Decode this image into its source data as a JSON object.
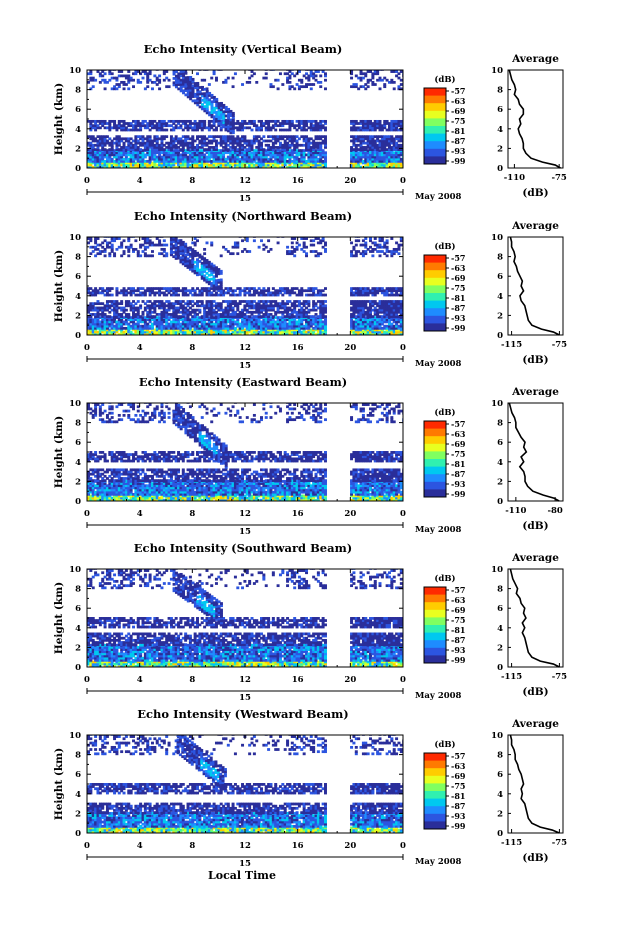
{
  "colorbar": {
    "unit": "(dB)",
    "ticks": [
      "-57",
      "-63",
      "-69",
      "-75",
      "-81",
      "-87",
      "-93",
      "-99"
    ],
    "colors": [
      "#ff2a00",
      "#ff7a00",
      "#ffcc00",
      "#e8ff20",
      "#80ff60",
      "#30f0b0",
      "#00c8f0",
      "#1e8cff",
      "#2c55e0",
      "#2a2e9a"
    ]
  },
  "common": {
    "ylabel": "Height (km)",
    "day_label": "15",
    "date_label": "May 2008",
    "average_title": "Average",
    "average_xlabel": "(dB)",
    "xlabel": "Local Time"
  },
  "chart_data": [
    {
      "type": "heatmap",
      "title": "Echo Intensity (Vertical Beam)",
      "xlabel": "",
      "ylabel": "Height (km)",
      "x_ticks": [
        "0",
        "4",
        "8",
        "12",
        "16",
        "20",
        "0"
      ],
      "y_ticks": [
        "0",
        "2",
        "4",
        "6",
        "8",
        "10"
      ],
      "xlim": [
        0,
        24
      ],
      "ylim": [
        0,
        10
      ],
      "data_gap_hours": [
        18.2,
        19.8
      ],
      "bands": [
        {
          "h0": 0.0,
          "h1": 0.6,
          "level": "strong"
        },
        {
          "h0": 0.6,
          "h1": 1.8,
          "level": "moderate"
        },
        {
          "h0": 1.8,
          "h1": 3.2,
          "level": "weak"
        },
        {
          "h0": 3.8,
          "h1": 4.8,
          "level": "weak"
        },
        {
          "h0": 8.0,
          "h1": 10.0,
          "level": "sparse"
        }
      ],
      "plume": {
        "t0": 6.5,
        "t1": 11.0,
        "h_top": 9.3,
        "h_bottom": 4.2
      },
      "average_profile": {
        "x_ticks": [
          "-110",
          "-75"
        ],
        "xlim": [
          -115,
          -72
        ],
        "height": [
          0,
          0.3,
          0.6,
          1.0,
          1.5,
          2.0,
          2.5,
          3.0,
          3.5,
          4.0,
          4.5,
          5.0,
          5.5,
          6.0,
          6.5,
          7.0,
          7.5,
          8.0,
          8.5,
          9.0,
          9.5,
          10.0
        ],
        "echo_db": [
          -74,
          -78,
          -88,
          -97,
          -101,
          -103,
          -103,
          -104,
          -106,
          -107,
          -105,
          -106,
          -103,
          -103,
          -106,
          -107,
          -110,
          -109,
          -110,
          -112,
          -113,
          -114
        ]
      }
    },
    {
      "type": "heatmap",
      "title": "Echo Intensity (Northward Beam)",
      "xlabel": "",
      "ylabel": "Height (km)",
      "x_ticks": [
        "0",
        "4",
        "8",
        "12",
        "16",
        "20",
        "0"
      ],
      "y_ticks": [
        "0",
        "2",
        "4",
        "6",
        "8",
        "10"
      ],
      "xlim": [
        0,
        24
      ],
      "ylim": [
        0,
        10
      ],
      "data_gap_hours": [
        18.2,
        19.8
      ],
      "bands": [
        {
          "h0": 0.0,
          "h1": 0.6,
          "level": "strong"
        },
        {
          "h0": 0.6,
          "h1": 1.8,
          "level": "moderate"
        },
        {
          "h0": 1.8,
          "h1": 3.4,
          "level": "weak"
        },
        {
          "h0": 4.0,
          "h1": 4.8,
          "level": "weak"
        },
        {
          "h0": 8.0,
          "h1": 10.0,
          "level": "sparse"
        }
      ],
      "plume": {
        "t0": 6.3,
        "t1": 10.2,
        "h_top": 9.0,
        "h_bottom": 5.0
      },
      "average_profile": {
        "x_ticks": [
          "-115",
          "-75"
        ],
        "xlim": [
          -118,
          -72
        ],
        "height": [
          0,
          0.3,
          0.6,
          1.0,
          1.5,
          2.0,
          2.5,
          3.0,
          3.5,
          4.0,
          4.5,
          5.0,
          5.5,
          6.0,
          6.5,
          7.0,
          7.5,
          8.0,
          8.5,
          9.0,
          9.5,
          10.0
        ],
        "echo_db": [
          -75,
          -80,
          -90,
          -98,
          -101,
          -102,
          -103,
          -104,
          -107,
          -108,
          -105,
          -107,
          -106,
          -108,
          -110,
          -111,
          -113,
          -112,
          -113,
          -115,
          -115,
          -116
        ]
      }
    },
    {
      "type": "heatmap",
      "title": "Echo Intensity (Eastward Beam)",
      "xlabel": "",
      "ylabel": "Height (km)",
      "x_ticks": [
        "0",
        "4",
        "8",
        "12",
        "16",
        "20",
        "0"
      ],
      "y_ticks": [
        "0",
        "2",
        "4",
        "6",
        "8",
        "10"
      ],
      "xlim": [
        0,
        24
      ],
      "ylim": [
        0,
        10
      ],
      "data_gap_hours": [
        18.2,
        19.8
      ],
      "bands": [
        {
          "h0": 0.0,
          "h1": 0.6,
          "level": "strong"
        },
        {
          "h0": 0.6,
          "h1": 2.0,
          "level": "moderate"
        },
        {
          "h0": 2.0,
          "h1": 3.2,
          "level": "weak"
        },
        {
          "h0": 4.0,
          "h1": 5.0,
          "level": "weak"
        },
        {
          "h0": 8.0,
          "h1": 10.0,
          "level": "sparse"
        }
      ],
      "plume": {
        "t0": 6.5,
        "t1": 10.5,
        "h_top": 8.8,
        "h_bottom": 4.2
      },
      "average_profile": {
        "x_ticks": [
          "-110",
          "-80"
        ],
        "xlim": [
          -116,
          -74
        ],
        "height": [
          0,
          0.3,
          0.6,
          1.0,
          1.5,
          2.0,
          2.5,
          3.0,
          3.5,
          4.0,
          4.5,
          5.0,
          5.5,
          6.0,
          6.5,
          7.0,
          7.5,
          8.0,
          8.5,
          9.0,
          9.5,
          10.0
        ],
        "echo_db": [
          -77,
          -81,
          -89,
          -97,
          -101,
          -103,
          -103,
          -104,
          -107,
          -104,
          -106,
          -102,
          -104,
          -103,
          -106,
          -108,
          -110,
          -110,
          -111,
          -113,
          -114,
          -115
        ]
      }
    },
    {
      "type": "heatmap",
      "title": "Echo Intensity (Southward Beam)",
      "xlabel": "",
      "ylabel": "Height (km)",
      "x_ticks": [
        "0",
        "4",
        "8",
        "12",
        "16",
        "20",
        "0"
      ],
      "y_ticks": [
        "0",
        "2",
        "4",
        "6",
        "8",
        "10"
      ],
      "xlim": [
        0,
        24
      ],
      "ylim": [
        0,
        10
      ],
      "data_gap_hours": [
        18.2,
        19.8
      ],
      "bands": [
        {
          "h0": 0.0,
          "h1": 0.6,
          "level": "strong"
        },
        {
          "h0": 0.6,
          "h1": 2.2,
          "level": "moderate"
        },
        {
          "h0": 2.2,
          "h1": 3.4,
          "level": "weak"
        },
        {
          "h0": 4.0,
          "h1": 5.0,
          "level": "weak"
        },
        {
          "h0": 8.0,
          "h1": 10.0,
          "level": "sparse"
        }
      ],
      "plume": {
        "t0": 6.5,
        "t1": 10.2,
        "h_top": 8.6,
        "h_bottom": 5.0
      },
      "average_profile": {
        "x_ticks": [
          "-115",
          "-75"
        ],
        "xlim": [
          -118,
          -72
        ],
        "height": [
          0,
          0.3,
          0.6,
          1.0,
          1.5,
          2.0,
          2.5,
          3.0,
          3.5,
          4.0,
          4.5,
          5.0,
          5.5,
          6.0,
          6.5,
          7.0,
          7.5,
          8.0,
          8.5,
          9.0,
          9.5,
          10.0
        ],
        "echo_db": [
          -75,
          -80,
          -91,
          -98,
          -101,
          -102,
          -103,
          -104,
          -106,
          -104,
          -106,
          -103,
          -105,
          -104,
          -107,
          -108,
          -111,
          -110,
          -112,
          -114,
          -115,
          -116
        ]
      }
    },
    {
      "type": "heatmap",
      "title": "Echo Intensity (Westward Beam)",
      "xlabel": "Local Time",
      "ylabel": "Height (km)",
      "x_ticks": [
        "0",
        "4",
        "8",
        "12",
        "16",
        "20",
        "0"
      ],
      "y_ticks": [
        "0",
        "2",
        "4",
        "6",
        "8",
        "10"
      ],
      "xlim": [
        0,
        24
      ],
      "ylim": [
        0,
        10
      ],
      "data_gap_hours": [
        18.2,
        19.8
      ],
      "bands": [
        {
          "h0": 0.0,
          "h1": 0.6,
          "level": "strong"
        },
        {
          "h0": 0.6,
          "h1": 2.0,
          "level": "moderate"
        },
        {
          "h0": 2.0,
          "h1": 3.0,
          "level": "weak"
        },
        {
          "h0": 4.0,
          "h1": 5.0,
          "level": "weak"
        },
        {
          "h0": 8.0,
          "h1": 10.0,
          "level": "sparse"
        }
      ],
      "plume": {
        "t0": 6.8,
        "t1": 10.5,
        "h_top": 9.0,
        "h_bottom": 5.0
      },
      "average_profile": {
        "x_ticks": [
          "-115",
          "-75"
        ],
        "xlim": [
          -118,
          -72
        ],
        "height": [
          0,
          0.3,
          0.6,
          1.0,
          1.5,
          2.0,
          2.5,
          3.0,
          3.5,
          4.0,
          4.5,
          5.0,
          5.5,
          6.0,
          6.5,
          7.0,
          7.5,
          8.0,
          8.5,
          9.0,
          9.5,
          10.0
        ],
        "echo_db": [
          -75,
          -81,
          -91,
          -98,
          -101,
          -102,
          -103,
          -104,
          -107,
          -106,
          -107,
          -105,
          -106,
          -107,
          -109,
          -110,
          -112,
          -112,
          -113,
          -115,
          -115,
          -116
        ]
      }
    }
  ]
}
